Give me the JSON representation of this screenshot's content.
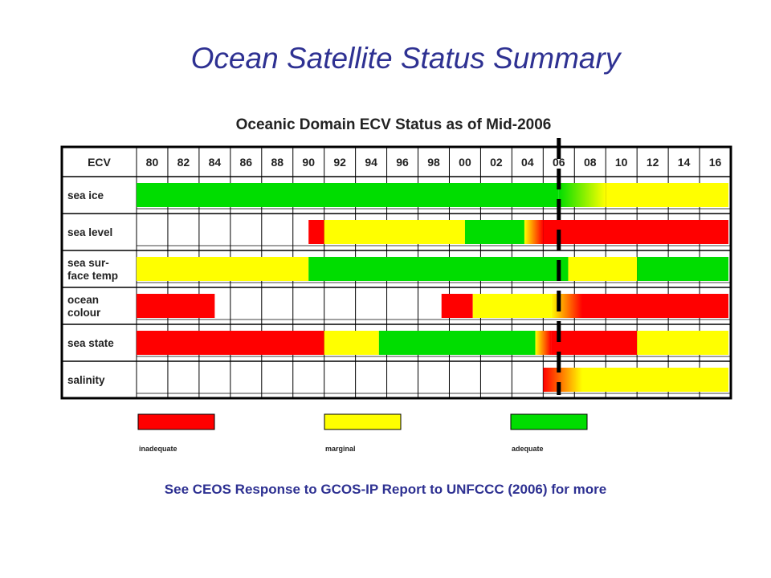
{
  "slide_title": "Ocean Satellite Status Summary",
  "footer_text": "See CEOS Response to GCOS-IP Report to UNFCCC (2006) for more",
  "colors": {
    "inadequate": "#ff0000",
    "marginal": "#ffff00",
    "adequate": "#00dd00",
    "title": "#2e3192"
  },
  "chart_data": {
    "type": "table",
    "title": "Oceanic Domain ECV Status as of Mid-2006",
    "header_label": "ECV",
    "columns": [
      "80",
      "82",
      "84",
      "86",
      "88",
      "90",
      "92",
      "94",
      "96",
      "98",
      "00",
      "02",
      "04",
      "06",
      "08",
      "10",
      "12",
      "14",
      "16"
    ],
    "current_time_marker": 2007,
    "rows": [
      {
        "label": [
          "sea ice"
        ],
        "segments": [
          {
            "from": 1980,
            "to": 2007,
            "status": "adequate"
          },
          {
            "from": 2007,
            "to": 2010,
            "status": "adequate→marginal"
          },
          {
            "from": 2010,
            "to": 2018,
            "status": "marginal"
          }
        ]
      },
      {
        "label": [
          "sea level"
        ],
        "segments": [
          {
            "from": 1991,
            "to": 1992,
            "status": "inadequate"
          },
          {
            "from": 1992,
            "to": 2001,
            "status": "marginal"
          },
          {
            "from": 2001,
            "to": 2004.8,
            "status": "adequate"
          },
          {
            "from": 2004.8,
            "to": 2006,
            "status": "marginal→inadequate"
          },
          {
            "from": 2006,
            "to": 2018,
            "status": "inadequate"
          }
        ]
      },
      {
        "label": [
          "sea sur-",
          "face temp"
        ],
        "segments": [
          {
            "from": 1980,
            "to": 1991,
            "status": "marginal"
          },
          {
            "from": 1991,
            "to": 2007.6,
            "status": "adequate"
          },
          {
            "from": 2007.6,
            "to": 2012,
            "status": "marginal"
          },
          {
            "from": 2012,
            "to": 2018,
            "status": "adequate"
          }
        ]
      },
      {
        "label": [
          "ocean",
          "colour"
        ],
        "segments": [
          {
            "from": 1980,
            "to": 1985,
            "status": "inadequate"
          },
          {
            "from": 1999.5,
            "to": 2001.5,
            "status": "inadequate"
          },
          {
            "from": 2001.5,
            "to": 2006.5,
            "status": "marginal"
          },
          {
            "from": 2006.5,
            "to": 2008.5,
            "status": "marginal→inadequate"
          },
          {
            "from": 2008.5,
            "to": 2018,
            "status": "inadequate"
          }
        ]
      },
      {
        "label": [
          "sea state"
        ],
        "segments": [
          {
            "from": 1980,
            "to": 1992,
            "status": "inadequate"
          },
          {
            "from": 1992,
            "to": 1995.5,
            "status": "marginal"
          },
          {
            "from": 1995.5,
            "to": 2005.5,
            "status": "adequate"
          },
          {
            "from": 2005.5,
            "to": 2006.5,
            "status": "marginal→inadequate"
          },
          {
            "from": 2006.5,
            "to": 2012,
            "status": "inadequate"
          },
          {
            "from": 2012,
            "to": 2018,
            "status": "marginal"
          }
        ]
      },
      {
        "label": [
          "salinity"
        ],
        "segments": [
          {
            "from": 2006,
            "to": 2008.5,
            "status": "inadequate→marginal"
          },
          {
            "from": 2008.5,
            "to": 2018,
            "status": "marginal"
          }
        ]
      }
    ],
    "legend": [
      {
        "key": "inadequate",
        "label": "inadequate"
      },
      {
        "key": "marginal",
        "label": "marginal"
      },
      {
        "key": "adequate",
        "label": "adequate"
      }
    ]
  }
}
